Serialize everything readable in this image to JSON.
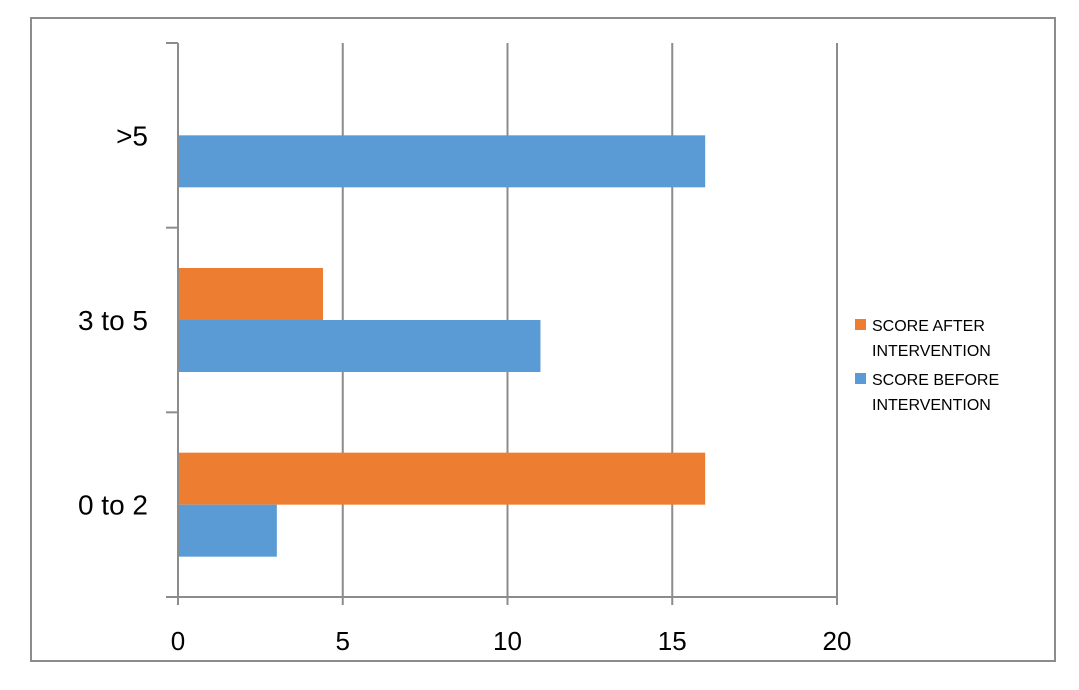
{
  "chart_data": {
    "type": "bar",
    "orientation": "horizontal",
    "title": "",
    "xlabel": "",
    "ylabel": "",
    "categories": [
      "0 to 2",
      "3 to 5",
      ">5"
    ],
    "series": [
      {
        "name": "SCORE BEFORE INTERVENTION",
        "color": "#5B9BD5",
        "values": [
          3,
          11,
          16
        ]
      },
      {
        "name": "SCORE AFTER INTERVENTION",
        "color": "#ED7D31",
        "values": [
          16,
          4.4,
          0
        ]
      }
    ],
    "xlim": [
      0,
      20
    ],
    "xticks": [
      0,
      5,
      10,
      15,
      20
    ],
    "grid": "vertical",
    "legend_position": "right",
    "legend_order": [
      "SCORE AFTER INTERVENTION",
      "SCORE BEFORE INTERVENTION"
    ]
  }
}
